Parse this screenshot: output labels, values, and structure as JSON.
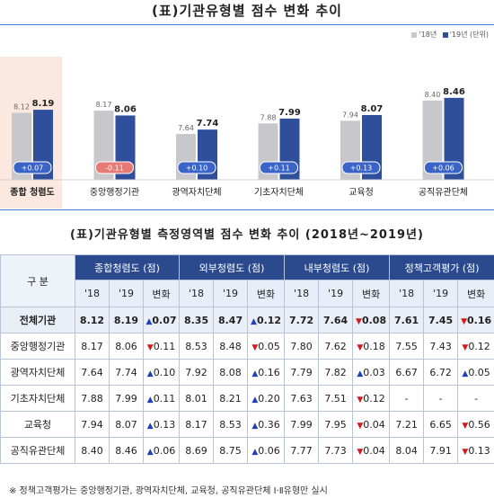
{
  "chart_title": "(표)기관유형별 점수 변화 추이",
  "legend": {
    "y2018": "'18년",
    "y2019": "'19년",
    "unit": "(단위)"
  },
  "colors": {
    "bar2018": "#c8c8cc",
    "bar2019": "#2f4f9c",
    "highlight_bg": "#fbe8df",
    "pos_badge": "#3a64c8",
    "neg_badge": "#e87a76"
  },
  "chart_data": {
    "type": "bar",
    "categories": [
      "종합 청렴도",
      "중앙행정기관",
      "광역자치단체",
      "기초자치단체",
      "교육청",
      "공직유관단체"
    ],
    "series": [
      {
        "name": "'18년",
        "values": [
          8.12,
          8.17,
          7.64,
          7.88,
          7.94,
          8.4
        ]
      },
      {
        "name": "'19년",
        "values": [
          8.19,
          8.06,
          7.74,
          7.99,
          8.07,
          8.46
        ]
      }
    ],
    "changes": [
      "+0.07",
      "-0.11",
      "+0.10",
      "+0.11",
      "+0.13",
      "+0.06"
    ],
    "value_labels_2018": [
      "8.12",
      "8.17",
      "7.64",
      "7.88",
      "7.94",
      "8.40"
    ],
    "value_labels_2019": [
      "8.19",
      "8.06",
      "7.74",
      "7.99",
      "8.07",
      "8.46"
    ]
  },
  "table_title": "(표)기관유형별 측정영역별 점수 변화 추이 (2018년~2019년)",
  "table": {
    "corner": "구 분",
    "groups": [
      "종합청렴도 (점)",
      "외부청렴도 (점)",
      "내부청렴도 (점)",
      "정책고객평가 (점)"
    ],
    "subheads": [
      "'18",
      "'19",
      "변화"
    ],
    "rows": [
      {
        "name": "전체기관",
        "total": true,
        "cells": [
          [
            "8.12",
            "8.19",
            "up",
            "0.07"
          ],
          [
            "8.35",
            "8.47",
            "up",
            "0.12"
          ],
          [
            "7.72",
            "7.64",
            "dn",
            "0.08"
          ],
          [
            "7.61",
            "7.45",
            "dn",
            "0.16"
          ]
        ]
      },
      {
        "name": "중앙행정기관",
        "cells": [
          [
            "8.17",
            "8.06",
            "dn",
            "0.11"
          ],
          [
            "8.53",
            "8.48",
            "dn",
            "0.05"
          ],
          [
            "7.80",
            "7.62",
            "dn",
            "0.18"
          ],
          [
            "7.55",
            "7.43",
            "dn",
            "0.12"
          ]
        ]
      },
      {
        "name": "광역자치단체",
        "cells": [
          [
            "7.64",
            "7.74",
            "up",
            "0.10"
          ],
          [
            "7.92",
            "8.08",
            "up",
            "0.16"
          ],
          [
            "7.79",
            "7.82",
            "up",
            "0.03"
          ],
          [
            "6.67",
            "6.72",
            "up",
            "0.05"
          ]
        ]
      },
      {
        "name": "기초자치단체",
        "cells": [
          [
            "7.88",
            "7.99",
            "up",
            "0.11"
          ],
          [
            "8.01",
            "8.21",
            "up",
            "0.20"
          ],
          [
            "7.63",
            "7.51",
            "dn",
            "0.12"
          ],
          [
            "-",
            "-",
            "",
            ""
          ]
        ]
      },
      {
        "name": "교육청",
        "cells": [
          [
            "7.94",
            "8.07",
            "up",
            "0.13"
          ],
          [
            "8.17",
            "8.53",
            "up",
            "0.36"
          ],
          [
            "7.99",
            "7.95",
            "dn",
            "0.04"
          ],
          [
            "7.21",
            "6.65",
            "dn",
            "0.56"
          ]
        ]
      },
      {
        "name": "공직유관단체",
        "cells": [
          [
            "8.40",
            "8.46",
            "up",
            "0.06"
          ],
          [
            "8.69",
            "8.75",
            "up",
            "0.06"
          ],
          [
            "7.77",
            "7.73",
            "dn",
            "0.04"
          ],
          [
            "8.04",
            "7.91",
            "dn",
            "0.13"
          ]
        ]
      }
    ]
  },
  "footnote": "※ 정책고객평가는 중앙행정기관, 광역자치단체, 교육청, 공직유관단체 Ⅰ·Ⅱ유형만 실시"
}
